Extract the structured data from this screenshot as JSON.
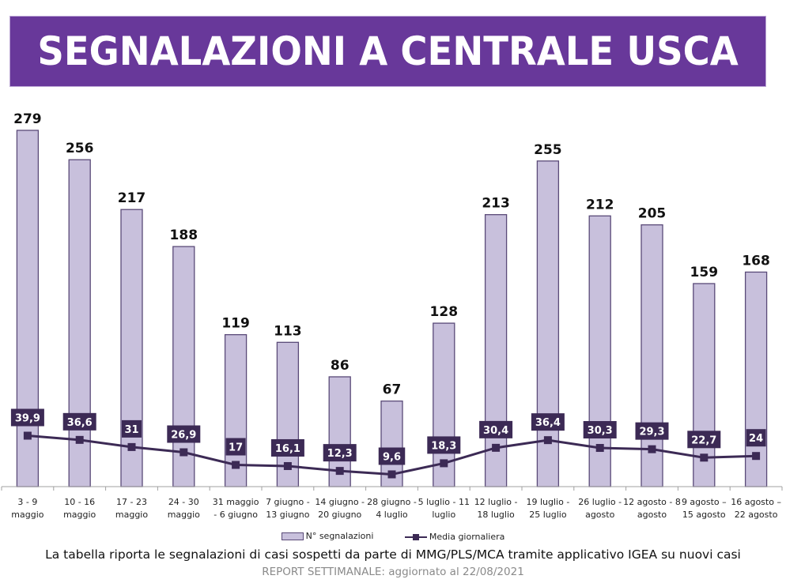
{
  "header": {
    "title": "SEGNALAZIONI A CENTRALE USCA"
  },
  "colors": {
    "header_bg": "#68389a",
    "bar_fill": "#c8c0dc",
    "bar_stroke": "#5a4a78",
    "line": "#3c2a55",
    "label_box": "#3c2a55"
  },
  "chart_data": {
    "type": "bar",
    "title": "SEGNALAZIONI A CENTRALE USCA",
    "xlabel": "",
    "ylabel": "",
    "ylim": [
      0,
      300
    ],
    "grid": false,
    "legend_position": "bottom",
    "categories": [
      [
        "3 - 9",
        "maggio"
      ],
      [
        "10 - 16",
        "maggio"
      ],
      [
        "17 - 23",
        "maggio"
      ],
      [
        "24 - 30",
        "maggio"
      ],
      [
        "31 maggio",
        "- 6 giugno"
      ],
      [
        "7 giugno -",
        "13 giugno"
      ],
      [
        "14 giugno -",
        "20 giugno"
      ],
      [
        "28 giugno -",
        "4 luglio"
      ],
      [
        "5 luglio - 11",
        "luglio"
      ],
      [
        "12 luglio -",
        "18 luglio"
      ],
      [
        "19 luglio -",
        "25 luglio"
      ],
      [
        "26 luglio -",
        "agosto"
      ],
      [
        "12 agosto - 8",
        "agosto"
      ],
      [
        "9 agosto –",
        "15 agosto"
      ],
      [
        "16 agosto –",
        "22 agosto"
      ]
    ],
    "series": [
      {
        "name": "N° segnalazioni",
        "type": "bar",
        "values": [
          279,
          256,
          217,
          188,
          119,
          113,
          86,
          67,
          128,
          213,
          255,
          212,
          205,
          159,
          168
        ],
        "labels": [
          "279",
          "256",
          "217",
          "188",
          "119",
          "113",
          "86",
          "67",
          "128",
          "213",
          "255",
          "212",
          "205",
          "159",
          "168"
        ]
      },
      {
        "name": "Media giornaliera",
        "type": "line",
        "values": [
          39.9,
          36.6,
          31,
          26.9,
          17,
          16.1,
          12.3,
          9.6,
          18.3,
          30.4,
          36.4,
          30.3,
          29.3,
          22.7,
          24
        ],
        "labels": [
          "39,9",
          "36,6",
          "31",
          "26,9",
          "17",
          "16,1",
          "12,3",
          "9,6",
          "18,3",
          "30,4",
          "36,4",
          "30,3",
          "29,3",
          "22,7",
          "24"
        ]
      }
    ]
  },
  "legend": {
    "bar_label": "N° segnalazioni",
    "line_label": "Media giornaliera"
  },
  "footer": {
    "caption": "La tabella riporta le segnalazioni di casi sospetti da parte di MMG/PLS/MCA tramite applicativo IGEA su nuovi casi",
    "report": "REPORT SETTIMANALE: aggiornato al 22/08/2021"
  }
}
